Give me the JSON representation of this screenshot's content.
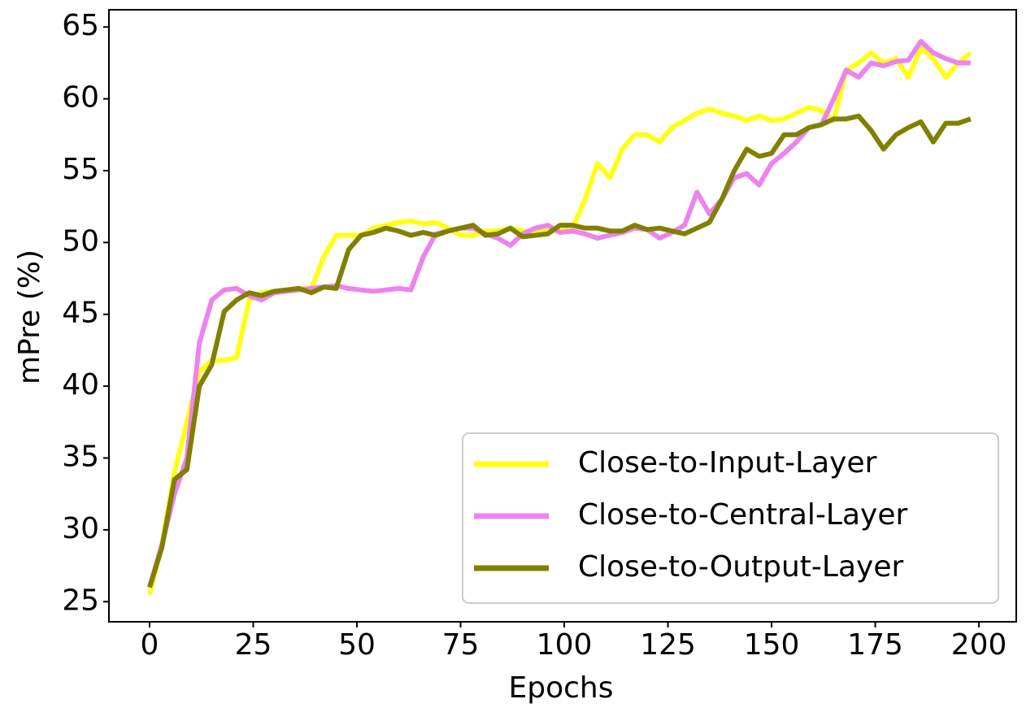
{
  "chart_data": {
    "type": "line",
    "x_label": "Epochs",
    "y_label": "mPre (%)",
    "x": [
      0,
      3,
      6,
      9,
      12,
      15,
      18,
      21,
      24,
      27,
      30,
      33,
      36,
      39,
      42,
      45,
      48,
      51,
      54,
      57,
      60,
      63,
      66,
      69,
      72,
      75,
      78,
      81,
      84,
      87,
      90,
      93,
      96,
      99,
      102,
      105,
      108,
      111,
      114,
      117,
      120,
      123,
      126,
      129,
      132,
      135,
      138,
      141,
      144,
      147,
      150,
      153,
      156,
      159,
      162,
      165,
      168,
      171,
      174,
      177,
      180,
      183,
      186,
      189,
      192,
      195,
      198
    ],
    "series": [
      {
        "name": "Close-to-Input-Layer",
        "color": "#ffff14",
        "values": [
          25.5,
          29,
          34,
          37.5,
          41,
          41.8,
          41.8,
          42,
          46,
          46.5,
          46.6,
          46.7,
          46.8,
          46.8,
          49,
          50.5,
          50.5,
          50.5,
          51,
          51.2,
          51.4,
          51.5,
          51.3,
          51.4,
          51,
          50.5,
          50.5,
          50.8,
          50.8,
          51,
          50.8,
          50.7,
          50.8,
          50.8,
          51,
          53,
          55.5,
          54.5,
          56.5,
          57.5,
          57.5,
          57,
          58,
          58.5,
          59,
          59.3,
          59,
          58.8,
          58.5,
          58.8,
          58.5,
          58.6,
          59,
          59.4,
          59.2,
          58.5,
          62,
          62.5,
          63.2,
          62.5,
          62.8,
          61.5,
          63.5,
          62.8,
          61.5,
          62.5,
          63.2
        ]
      },
      {
        "name": "Close-to-Central-Layer",
        "color": "#ee82ee",
        "values": [
          26,
          29,
          32.5,
          35,
          43,
          46,
          46.7,
          46.8,
          46.3,
          46,
          46.5,
          46.6,
          46.7,
          46.8,
          46.9,
          47,
          46.8,
          46.7,
          46.6,
          46.7,
          46.8,
          46.7,
          49,
          50.6,
          50.8,
          51,
          51,
          50.6,
          50.3,
          49.8,
          50.6,
          51,
          51.2,
          50.7,
          50.8,
          50.6,
          50.3,
          50.5,
          50.7,
          51,
          50.9,
          50.3,
          50.7,
          51.2,
          53.5,
          52,
          53,
          54.5,
          54.8,
          54,
          55.5,
          56.2,
          57,
          58,
          58.2,
          60,
          62,
          61.5,
          62.5,
          62.3,
          62.6,
          62.7,
          64,
          63.2,
          62.8,
          62.5,
          62.5
        ]
      },
      {
        "name": "Close-to-Output-Layer",
        "color": "#808000",
        "values": [
          26,
          28.8,
          33.5,
          34.2,
          40,
          41.5,
          45.2,
          46,
          46.5,
          46.3,
          46.6,
          46.7,
          46.8,
          46.5,
          46.9,
          46.8,
          49.5,
          50.5,
          50.7,
          51,
          50.8,
          50.5,
          50.7,
          50.5,
          50.8,
          51,
          51.2,
          50.5,
          50.6,
          51,
          50.4,
          50.5,
          50.6,
          51.2,
          51.2,
          51,
          51,
          50.8,
          50.8,
          51.2,
          50.9,
          51,
          50.8,
          50.6,
          51,
          51.4,
          53,
          55,
          56.5,
          56,
          56.2,
          57.5,
          57.5,
          58,
          58.2,
          58.6,
          58.6,
          58.8,
          57.8,
          56.5,
          57.5,
          58,
          58.4,
          57,
          58.3,
          58.3,
          58.6
        ]
      }
    ],
    "xlim": [
      -9.8,
      209
    ],
    "ylim": [
      23.6,
      66.2
    ],
    "xticks": [
      0,
      25,
      50,
      75,
      100,
      125,
      150,
      175,
      200
    ],
    "yticks": [
      25,
      30,
      35,
      40,
      45,
      50,
      55,
      60,
      65
    ],
    "grid": false,
    "legend": "lower right"
  }
}
